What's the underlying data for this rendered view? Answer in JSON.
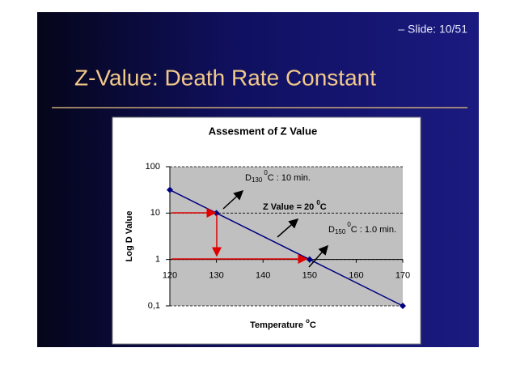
{
  "slide_number": "– Slide: 10/51",
  "slide_title": "Z-Value: Death Rate Constant",
  "chart_data": {
    "type": "line",
    "title": "Assesment of Z Value",
    "y_label": "Log D Value",
    "x_label": {
      "text": "Temperature ",
      "sup": "o",
      "rest": "C"
    },
    "x": [
      120,
      130,
      150,
      170
    ],
    "series": [
      {
        "color": "#000080",
        "values": [
          31.6,
          10,
          1,
          0.1
        ]
      }
    ],
    "xlim": [
      120,
      170
    ],
    "xticks": [
      120,
      130,
      140,
      150,
      160,
      170
    ],
    "ylim": [
      0.1,
      100
    ],
    "yticks": [
      {
        "value": 0.1,
        "label": "0,1"
      },
      1,
      10,
      100
    ],
    "log_y": true,
    "grid": true,
    "x_axis_at": 1,
    "annotations": [
      {
        "text": "D",
        "sub": "130",
        "sup": "0",
        "rest": "C : 10 min."
      },
      {
        "text": "Z Value = 20 ",
        "sup": "0",
        "rest": "C"
      },
      {
        "text": "D",
        "sub": "150",
        "sup": "0",
        "rest": "C : 1.0 min."
      }
    ]
  }
}
